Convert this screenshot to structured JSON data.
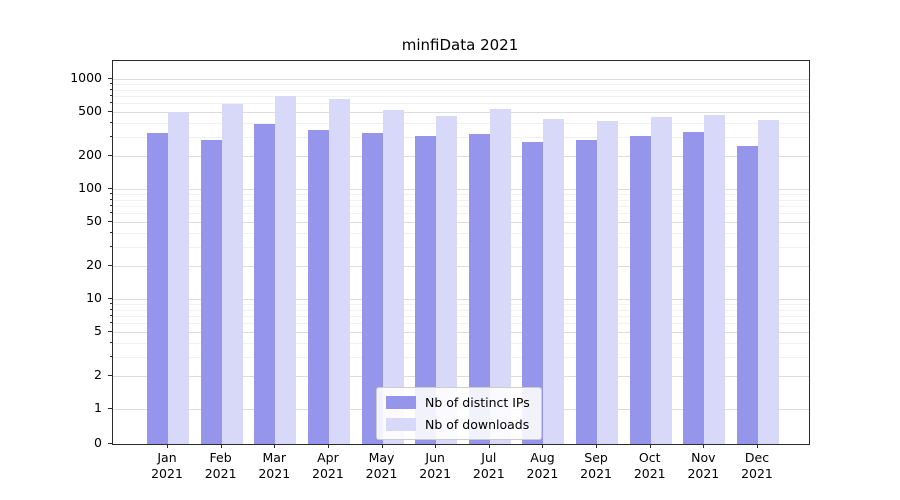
{
  "chart_data": {
    "type": "bar",
    "title": "minfiData 2021",
    "months": [
      "Jan",
      "Feb",
      "Mar",
      "Apr",
      "May",
      "Jun",
      "Jul",
      "Aug",
      "Sep",
      "Oct",
      "Nov",
      "Dec"
    ],
    "year": "2021",
    "categories": [
      "Jan 2021",
      "Feb 2021",
      "Mar 2021",
      "Apr 2021",
      "May 2021",
      "Jun 2021",
      "Jul 2021",
      "Aug 2021",
      "Sep 2021",
      "Oct 2021",
      "Nov 2021",
      "Dec 2021"
    ],
    "series": [
      {
        "id": "distinct-ips",
        "name": "Nb of distinct IPs",
        "color": "#9595ec",
        "values": [
          320,
          280,
          390,
          345,
          320,
          305,
          315,
          265,
          280,
          305,
          330,
          245
        ]
      },
      {
        "id": "downloads",
        "name": "Nb of downloads",
        "color": "#d8d8f8",
        "values": [
          500,
          590,
          700,
          655,
          520,
          460,
          530,
          430,
          415,
          455,
          470,
          420
        ]
      }
    ],
    "yscale": "symlog",
    "y_ticks": [
      1000,
      500,
      200,
      100,
      50,
      20,
      10,
      5,
      2,
      1,
      0
    ],
    "ylim": [
      0,
      1450
    ],
    "xlabel": "",
    "ylabel": "",
    "grid": true,
    "legend_position": "lower center"
  }
}
